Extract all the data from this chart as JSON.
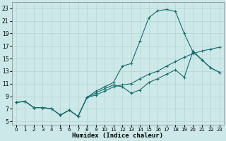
{
  "xlabel": "Humidex (Indice chaleur)",
  "bg_color": "#cce8e8",
  "grid_color": "#b8d8d8",
  "line_color": "#1a6b6b",
  "hours": [
    0,
    1,
    2,
    3,
    4,
    5,
    6,
    7,
    8,
    9,
    10,
    11,
    12,
    13,
    14,
    15,
    16,
    17,
    18,
    19,
    20,
    21,
    22,
    23
  ],
  "series1": [
    8.0,
    8.2,
    7.2,
    7.2,
    7.0,
    6.0,
    6.8,
    5.8,
    8.8,
    9.8,
    10.5,
    11.2,
    13.8,
    14.2,
    17.8,
    21.5,
    22.6,
    22.8,
    22.5,
    19.0,
    16.0,
    14.8,
    13.5,
    12.8
  ],
  "series2": [
    8.0,
    8.2,
    7.2,
    7.2,
    7.0,
    6.0,
    6.8,
    5.8,
    8.8,
    9.5,
    10.2,
    10.8,
    10.5,
    9.5,
    10.0,
    11.2,
    11.8,
    12.5,
    13.2,
    12.0,
    16.2,
    14.8,
    13.5,
    12.8
  ],
  "series3": [
    8.0,
    8.2,
    7.2,
    7.2,
    7.0,
    6.0,
    6.8,
    5.8,
    8.8,
    9.2,
    9.8,
    10.5,
    10.8,
    11.0,
    11.8,
    12.5,
    13.0,
    13.8,
    14.5,
    15.2,
    15.8,
    16.2,
    16.5,
    16.8
  ],
  "ylim": [
    4.5,
    24.0
  ],
  "yticks": [
    5,
    7,
    9,
    11,
    13,
    15,
    17,
    19,
    21,
    23
  ],
  "xlim": [
    -0.5,
    23.5
  ],
  "xticks": [
    0,
    1,
    2,
    3,
    4,
    5,
    6,
    7,
    8,
    9,
    10,
    11,
    12,
    13,
    14,
    15,
    16,
    17,
    18,
    19,
    20,
    21,
    22,
    23
  ]
}
